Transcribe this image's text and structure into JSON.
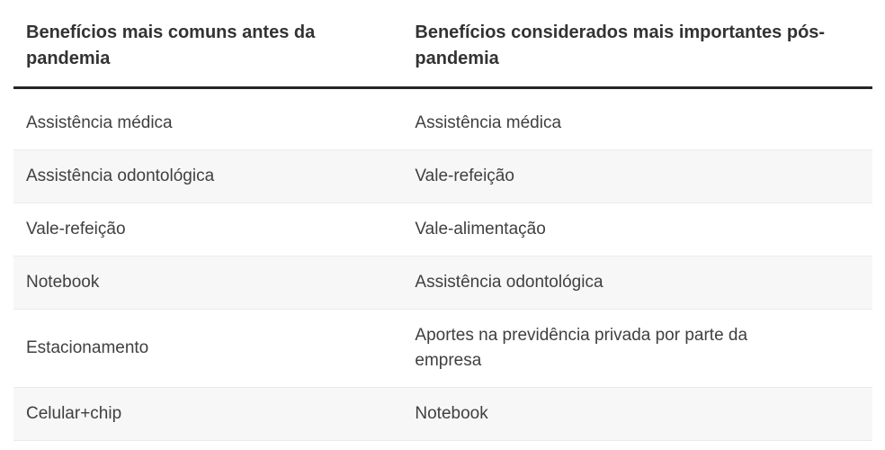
{
  "chart_data": {
    "type": "table",
    "columns": [
      "Benefícios mais comuns antes da pandemia",
      "Benefícios considerados mais importantes pós-pandemia"
    ],
    "rows": [
      [
        "Assistência médica",
        "Assistência médica"
      ],
      [
        "Assistência odontológica",
        "Vale-refeição"
      ],
      [
        "Vale-refeição",
        "Vale-alimentação"
      ],
      [
        "Notebook",
        "Assistência odontológica"
      ],
      [
        "Estacionamento",
        "Aportes na previdência privada por parte da empresa"
      ],
      [
        "Celular+chip",
        "Notebook"
      ]
    ],
    "layout": {
      "striped": true,
      "stripe_color": "#f7f7f7",
      "row_border_color": "#ebebeb",
      "header_rule_color": "#262626",
      "header_text_color": "#333333",
      "cell_text_color": "#404040",
      "background": "#ffffff",
      "column_split": "45/55"
    }
  }
}
